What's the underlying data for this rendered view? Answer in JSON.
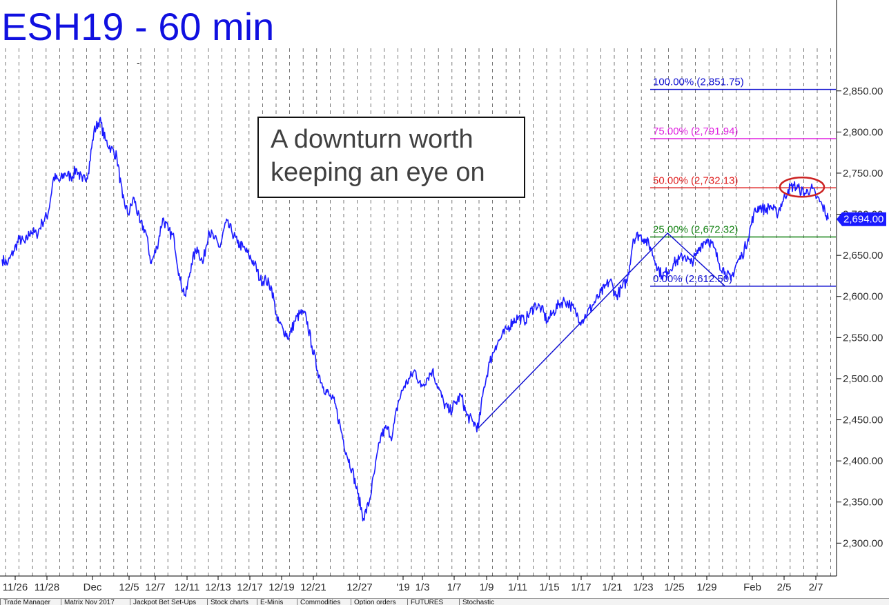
{
  "chart_data": {
    "type": "line",
    "title": "ESH19 - 60 min",
    "annotation": [
      "A downturn worth",
      "keeping an eye on"
    ],
    "ylim": [
      2260,
      2880
    ],
    "y_ticks": [
      "2,300.00",
      "2,350.00",
      "2,400.00",
      "2,450.00",
      "2,500.00",
      "2,550.00",
      "2,600.00",
      "2,650.00",
      "2,700.00",
      "2,750.00",
      "2,800.00",
      "2,850.00"
    ],
    "y_tick_values": [
      2300,
      2350,
      2400,
      2450,
      2500,
      2550,
      2600,
      2650,
      2700,
      2750,
      2800,
      2850
    ],
    "x_labels": [
      "11/26",
      "11/28",
      "Dec",
      "12/5",
      "12/7",
      "12/11",
      "12/13",
      "12/17",
      "12/19",
      "12/21",
      "12/27",
      "'19",
      "1/3",
      "1/7",
      "1/9",
      "1/11",
      "1/15",
      "1/17",
      "1/21",
      "1/23",
      "1/25",
      "1/29",
      "Feb",
      "2/5",
      "2/7"
    ],
    "last_price": "2,694.00",
    "last_value": 2694,
    "series": [
      {
        "values": [
          2645,
          2640,
          2655,
          2670,
          2665,
          2680,
          2675,
          2690,
          2700,
          2745,
          2740,
          2750,
          2745,
          2755,
          2740,
          2750,
          2800,
          2815,
          2790,
          2780,
          2770,
          2720,
          2700,
          2720,
          2690,
          2680,
          2640,
          2660,
          2695,
          2680,
          2670,
          2620,
          2600,
          2640,
          2660,
          2640,
          2680,
          2670,
          2660,
          2690,
          2680,
          2665,
          2660,
          2650,
          2640,
          2620,
          2620,
          2610,
          2570,
          2560,
          2550,
          2570,
          2580,
          2575,
          2540,
          2510,
          2490,
          2480,
          2470,
          2440,
          2410,
          2390,
          2360,
          2330,
          2350,
          2390,
          2430,
          2440,
          2430,
          2470,
          2490,
          2500,
          2510,
          2490,
          2500,
          2510,
          2490,
          2470,
          2460,
          2470,
          2480,
          2455,
          2448,
          2440,
          2490,
          2520,
          2540,
          2550,
          2560,
          2570,
          2575,
          2570,
          2580,
          2590,
          2585,
          2570,
          2580,
          2590,
          2595,
          2590,
          2580,
          2570,
          2580,
          2590,
          2600,
          2610,
          2620,
          2600,
          2610,
          2620,
          2670,
          2675,
          2670,
          2660,
          2640,
          2625,
          2630,
          2640,
          2645,
          2650,
          2640,
          2650,
          2665,
          2670,
          2660,
          2640,
          2630,
          2620,
          2640,
          2650,
          2670,
          2700,
          2710,
          2705,
          2710,
          2700,
          2715,
          2730,
          2735,
          2730,
          2725,
          2732,
          2720,
          2710,
          2694
        ]
      }
    ],
    "fib_levels": [
      {
        "label": "100.00% (2,851.75)",
        "value": 2851.75,
        "color": "#1010d0"
      },
      {
        "label": "75.00% (2,791.94)",
        "value": 2791.94,
        "color": "#e020e0"
      },
      {
        "label": "50.00% (2,732.13)",
        "value": 2732.13,
        "color": "#e02020"
      },
      {
        "label": "25.00% (2,672.32)",
        "value": 2672.32,
        "color": "#108010"
      },
      {
        "label": "0.00% (2,612.50)",
        "value": 2612.5,
        "color": "#1010d0"
      }
    ],
    "pattern_points": [
      {
        "x": 83,
        "y": 2440
      },
      {
        "x": 116,
        "y": 2677
      },
      {
        "x": 126,
        "y": 2612.5
      }
    ],
    "highlight_ellipse": {
      "center_value": 2733,
      "color": "#cc2222"
    },
    "line_color": "#1a1aff",
    "title_color": "#1010e0"
  },
  "tabs": [
    "Trade Manager",
    "Matrix Nov 2017",
    "Jackpot Bet Set-Ups",
    "Stock charts",
    "E-Minis",
    "Commodities",
    "Option orders",
    "FUTURES",
    "Stochastic"
  ]
}
